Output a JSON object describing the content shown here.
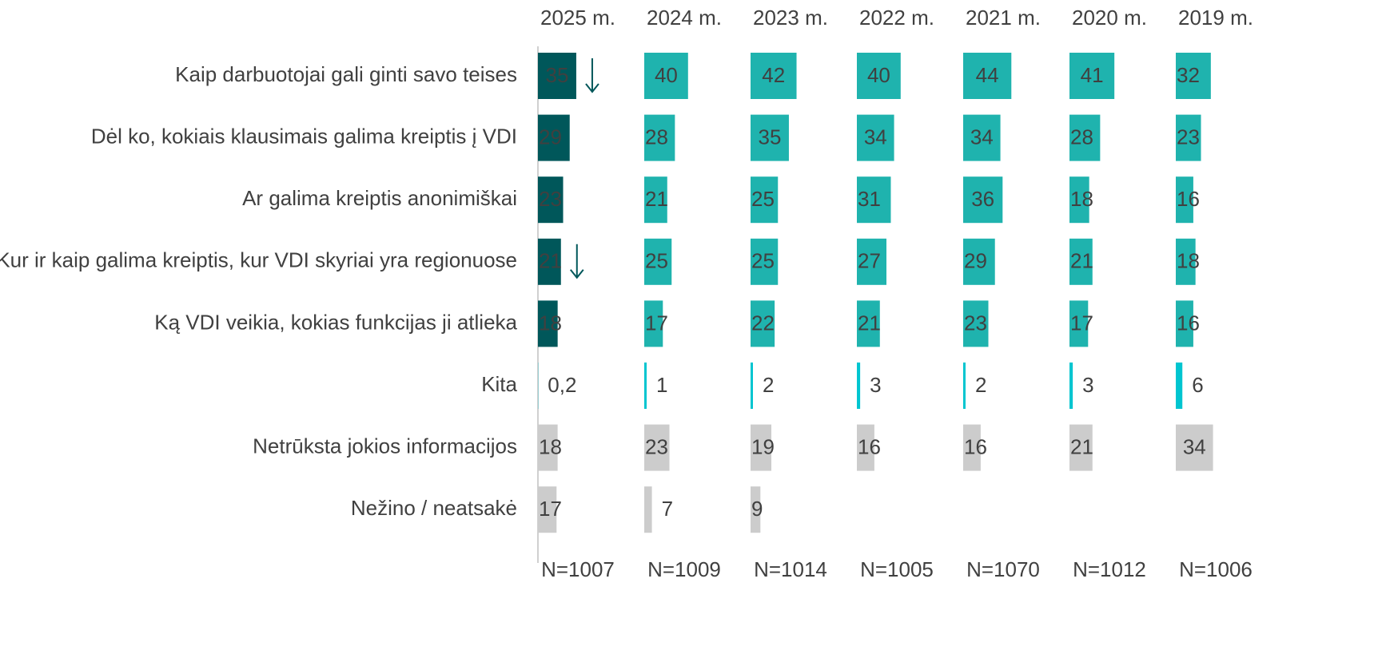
{
  "chart_data": {
    "type": "bar",
    "categories": [
      "Kaip darbuotojai gali ginti savo teises",
      "Dėl ko, kokiais klausimais galima kreiptis į VDI",
      "Ar galima kreiptis anonimiškai",
      "Kur ir kaip galima kreiptis, kur VDI skyriai yra regionuose",
      "Ką VDI veikia, kokias funkcijas ji atlieka",
      "Kita",
      "Netrūksta jokios informacijos",
      "Nežino / neatsakė"
    ],
    "series": [
      {
        "name": "2025 m.",
        "n": "N=1007",
        "values": [
          35,
          29,
          23,
          21,
          18,
          0.2,
          18,
          17
        ],
        "value_labels": [
          "35",
          "29",
          "23",
          "21",
          "18",
          "0,2",
          "18",
          "17"
        ],
        "colors": [
          "#00575a",
          "#00575a",
          "#00575a",
          "#00575a",
          "#00575a",
          "#00c5d0",
          "#cccccc",
          "#cccccc"
        ],
        "significant_decrease": [
          0,
          3
        ]
      },
      {
        "name": "2024 m.",
        "n": "N=1009",
        "values": [
          40,
          28,
          21,
          25,
          17,
          1,
          23,
          7
        ],
        "colors": [
          "#1fb3ae",
          "#1fb3ae",
          "#1fb3ae",
          "#1fb3ae",
          "#1fb3ae",
          "#00c5d0",
          "#cccccc",
          "#cccccc"
        ]
      },
      {
        "name": "2023 m.",
        "n": "N=1014",
        "values": [
          42,
          35,
          25,
          25,
          22,
          2,
          19,
          9
        ],
        "colors": [
          "#1fb3ae",
          "#1fb3ae",
          "#1fb3ae",
          "#1fb3ae",
          "#1fb3ae",
          "#00c5d0",
          "#cccccc",
          "#cccccc"
        ]
      },
      {
        "name": "2022 m.",
        "n": "N=1005",
        "values": [
          40,
          34,
          31,
          27,
          21,
          3,
          16,
          null
        ],
        "colors": [
          "#1fb3ae",
          "#1fb3ae",
          "#1fb3ae",
          "#1fb3ae",
          "#1fb3ae",
          "#00c5d0",
          "#cccccc",
          "#cccccc"
        ]
      },
      {
        "name": "2021 m.",
        "n": "N=1070",
        "values": [
          44,
          34,
          36,
          29,
          23,
          2,
          16,
          null
        ],
        "colors": [
          "#1fb3ae",
          "#1fb3ae",
          "#1fb3ae",
          "#1fb3ae",
          "#1fb3ae",
          "#00c5d0",
          "#cccccc",
          "#cccccc"
        ]
      },
      {
        "name": "2020 m.",
        "n": "N=1012",
        "values": [
          41,
          28,
          18,
          21,
          17,
          3,
          21,
          null
        ],
        "colors": [
          "#1fb3ae",
          "#1fb3ae",
          "#1fb3ae",
          "#1fb3ae",
          "#1fb3ae",
          "#00c5d0",
          "#cccccc",
          "#cccccc"
        ]
      },
      {
        "name": "2019 m.",
        "n": "N=1006",
        "values": [
          32,
          23,
          16,
          18,
          16,
          6,
          34,
          null
        ],
        "colors": [
          "#1fb3ae",
          "#1fb3ae",
          "#1fb3ae",
          "#1fb3ae",
          "#1fb3ae",
          "#00c5d0",
          "#cccccc",
          "#cccccc"
        ]
      }
    ]
  }
}
